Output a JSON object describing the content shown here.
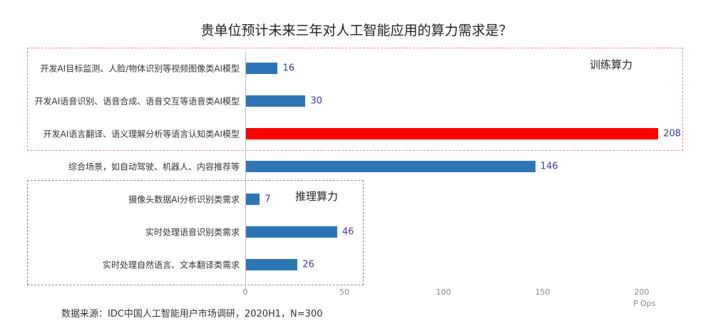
{
  "title": "贵单位预计未来三年对人工智能应用的算力需求是？",
  "groups": {
    "training": {
      "label": "训练算力",
      "border_color": "#e88a8a"
    },
    "inference": {
      "label": "推理算力",
      "border_color": "#8a8a8a"
    }
  },
  "axis": {
    "ticks": [
      "0",
      "50",
      "100",
      "150",
      "200"
    ],
    "unit": "P Ops"
  },
  "source": "数据来源：IDC中国人工智能用户市场调研，2020H1，N=300",
  "colors": {
    "bar_default": "#2e75b6",
    "bar_highlight": "#ff0000",
    "value_label": "#3d3d9b"
  },
  "chart_data": {
    "type": "bar",
    "orientation": "horizontal",
    "title": "贵单位预计未来三年对人工智能应用的算力需求是？",
    "categories": [
      "开发AI目标监测、人脸/物体识别等视频图像类AI模型",
      "开发AI语音识别、语音合成、语音交互等语音类AI模型",
      "开发AI语言翻译、语义理解分析等语言认知类AI模型",
      "综合场景，如自动驾驶、机器人、内容推荐等",
      "摄像头数据AI分析识别类需求",
      "实时处理语音识别类需求",
      "实时处理自然语言、文本翻译类需求"
    ],
    "values": [
      16,
      30,
      208,
      146,
      7,
      46,
      26
    ],
    "value_labels": [
      "16",
      "30",
      "208",
      "146",
      "7",
      "46",
      "26"
    ],
    "highlight_index": 2,
    "xlabel": "P Ops",
    "ylabel": "",
    "xlim": [
      0,
      210
    ],
    "xticks": [
      0,
      50,
      100,
      150,
      200
    ],
    "grid": false,
    "legend": null,
    "annotations": [
      {
        "text": "训练算力",
        "covers_categories": [
          0,
          1,
          2
        ],
        "style": "red dashed box"
      },
      {
        "text": "推理算力",
        "covers_categories": [
          4,
          5,
          6
        ],
        "style": "gray dashed box"
      }
    ]
  }
}
